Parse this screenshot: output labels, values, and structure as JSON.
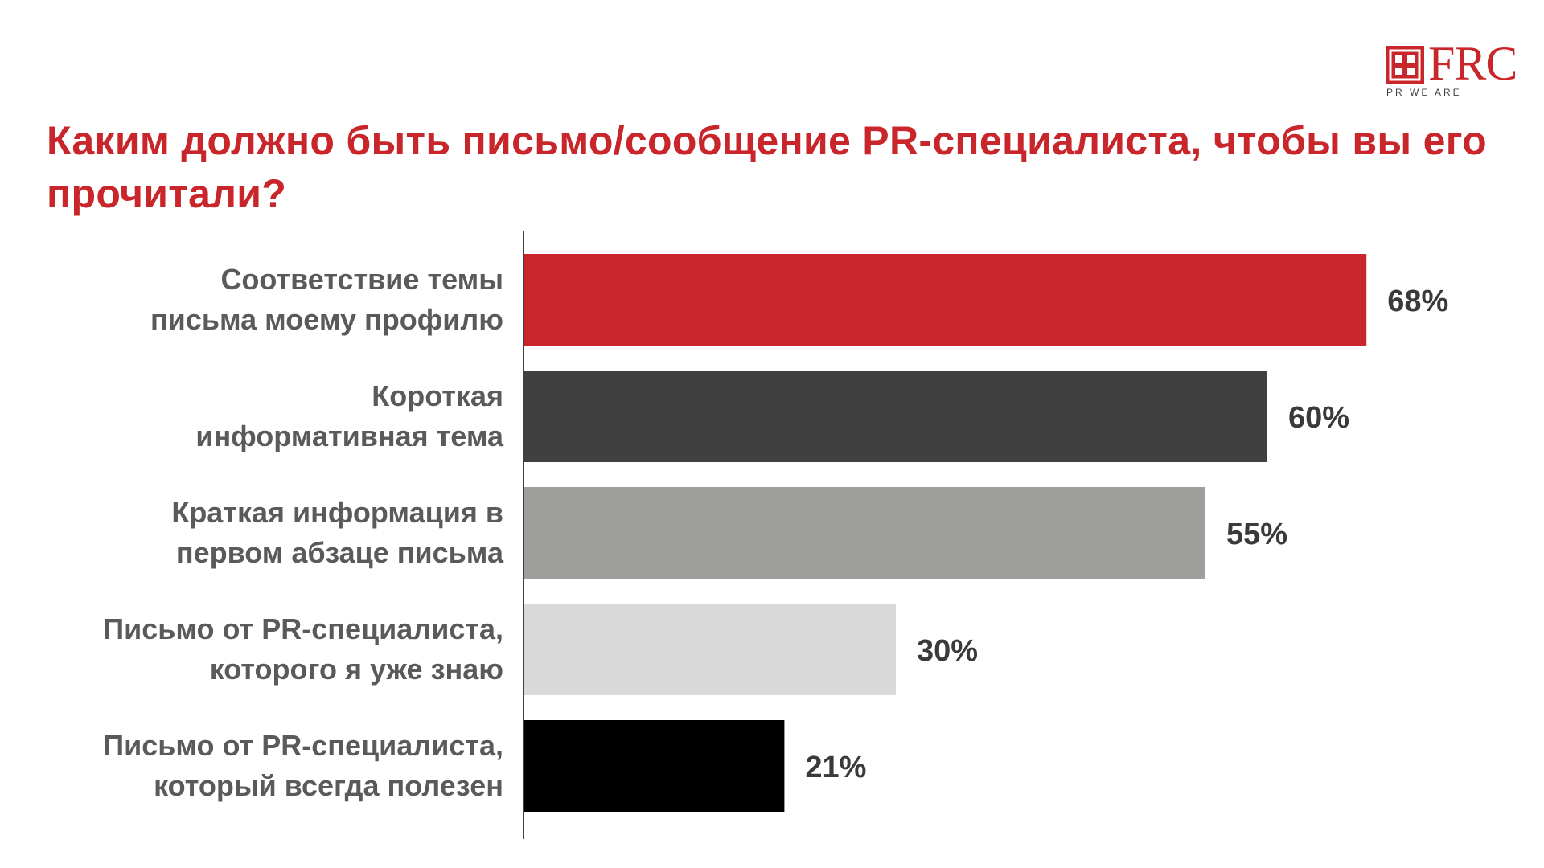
{
  "logo": {
    "text": "FRC",
    "tagline": "PR WE ARE",
    "color": "#c8262b"
  },
  "chart_data": {
    "type": "bar",
    "orientation": "horizontal",
    "title": "Каким должно быть письмо/сообщение PR-специалиста, чтобы вы его прочитали?",
    "xlabel": "",
    "ylabel": "",
    "xlim": [
      0,
      80
    ],
    "grid": false,
    "legend": "none",
    "categories": [
      [
        "Соответствие темы",
        "письма моему профилю"
      ],
      [
        "Короткая",
        "информативная тема"
      ],
      [
        "Краткая информация в",
        "первом абзаце письма"
      ],
      [
        "Письмо от PR-специалиста,",
        "которого я уже знаю"
      ],
      [
        "Письмо от PR-специалиста,",
        "который всегда полезен"
      ]
    ],
    "values": [
      68,
      60,
      55,
      30,
      21
    ],
    "value_labels": [
      "68%",
      "60%",
      "55%",
      "30%",
      "21%"
    ],
    "colors": [
      "#c8262b",
      "#404040",
      "#9e9e9d",
      "#d9d9d9",
      "#000000"
    ]
  }
}
